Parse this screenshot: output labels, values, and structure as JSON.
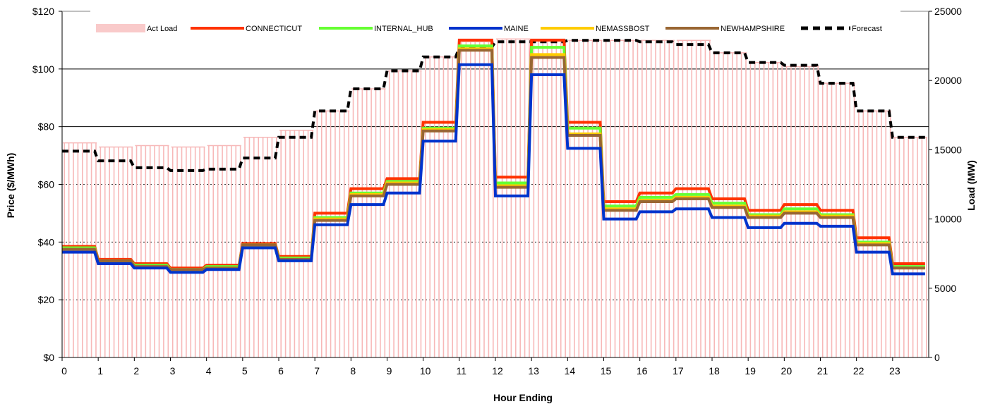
{
  "chart_data": {
    "type": "line",
    "title": "",
    "xlabel": "Hour Ending",
    "ylabel": "Price ($/MWh)",
    "y2label": "Load (MW)",
    "ylim": [
      0,
      120
    ],
    "y2lim": [
      0,
      25000
    ],
    "y_ticks": [
      "$0",
      "$20",
      "$40",
      "$60",
      "$80",
      "$100",
      "$120"
    ],
    "y2_ticks": [
      "0",
      "5000",
      "10000",
      "15000",
      "20000",
      "25000"
    ],
    "x_ticks": [
      "0",
      "1",
      "2",
      "3",
      "4",
      "5",
      "6",
      "7",
      "8",
      "9",
      "10",
      "11",
      "12",
      "13",
      "14",
      "15",
      "16",
      "17",
      "18",
      "19",
      "20",
      "21",
      "22",
      "23"
    ],
    "x": [
      0,
      1,
      2,
      3,
      4,
      5,
      6,
      7,
      8,
      9,
      10,
      11,
      12,
      13,
      14,
      15,
      16,
      17,
      18,
      19,
      20,
      21,
      22,
      23
    ],
    "gridlines": "dashed, solid at 80 and 100",
    "legend_position": "top",
    "load_series": [
      {
        "name": "Act Load",
        "axis": "right",
        "kind": "bars",
        "color": "#f7b8b8",
        "values": [
          15500,
          15200,
          15300,
          15200,
          15300,
          15900,
          16400,
          17800,
          19400,
          20700,
          21700,
          22800,
          23000,
          22900,
          22900,
          22900,
          22900,
          22900,
          22000,
          21300,
          21000,
          19800,
          17800,
          15900
        ]
      },
      {
        "name": "Forecast",
        "axis": "right",
        "kind": "dash",
        "color": "#000000",
        "values": [
          14900,
          14200,
          13700,
          13500,
          13600,
          14400,
          15900,
          17800,
          19400,
          20700,
          21700,
          22400,
          22800,
          22800,
          22900,
          22900,
          22800,
          22600,
          22000,
          21300,
          21100,
          19800,
          17800,
          15900
        ]
      }
    ],
    "series": [
      {
        "name": "CONNECTICUT",
        "color": "#ff3300",
        "values": [
          38.5,
          34,
          32.5,
          31,
          32,
          39.5,
          35,
          50,
          58.5,
          62,
          81.5,
          110,
          62.5,
          110,
          81.5,
          54,
          57,
          58.5,
          55,
          51,
          53,
          51,
          41.5,
          32.5
        ]
      },
      {
        "name": "INTERNAL_HUB",
        "color": "#66ff33",
        "values": [
          38,
          33.5,
          32,
          30.5,
          31.5,
          39,
          34.5,
          48.5,
          57,
          61,
          79.5,
          108,
          60.5,
          107.5,
          79.5,
          52.5,
          55.5,
          56.5,
          53.5,
          49.5,
          51.5,
          49.5,
          40,
          31.5
        ]
      },
      {
        "name": "MAINE",
        "color": "#0033cc",
        "values": [
          36.5,
          32.5,
          31,
          29.5,
          30.5,
          38,
          33.5,
          46,
          53,
          57,
          75,
          101.5,
          56,
          98,
          72.5,
          48,
          50.5,
          51.5,
          48.5,
          45,
          46.5,
          45.5,
          36.5,
          29
        ]
      },
      {
        "name": "NEMASSBOST",
        "color": "#ffcc00",
        "values": [
          37.5,
          33.5,
          31.5,
          30.5,
          31,
          39,
          34,
          48,
          56.5,
          60.5,
          79,
          107,
          59.5,
          105,
          77.5,
          51.5,
          54.5,
          55.5,
          52.5,
          49,
          50.5,
          49,
          39.5,
          31
        ]
      },
      {
        "name": "NEWHAMPSHIRE",
        "color": "#996633",
        "values": [
          37.5,
          33.5,
          31.5,
          30.5,
          31,
          39,
          34,
          47.5,
          56,
          60,
          78.5,
          106.5,
          59,
          104,
          77,
          51,
          54,
          55,
          52,
          48.5,
          50,
          48.5,
          39,
          31
        ]
      }
    ]
  }
}
